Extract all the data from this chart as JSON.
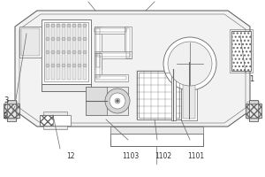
{
  "lc": "#666666",
  "white": "#ffffff",
  "light_gray": "#e8e8e8",
  "mid_gray": "#cccccc",
  "dark_gray": "#999999"
}
